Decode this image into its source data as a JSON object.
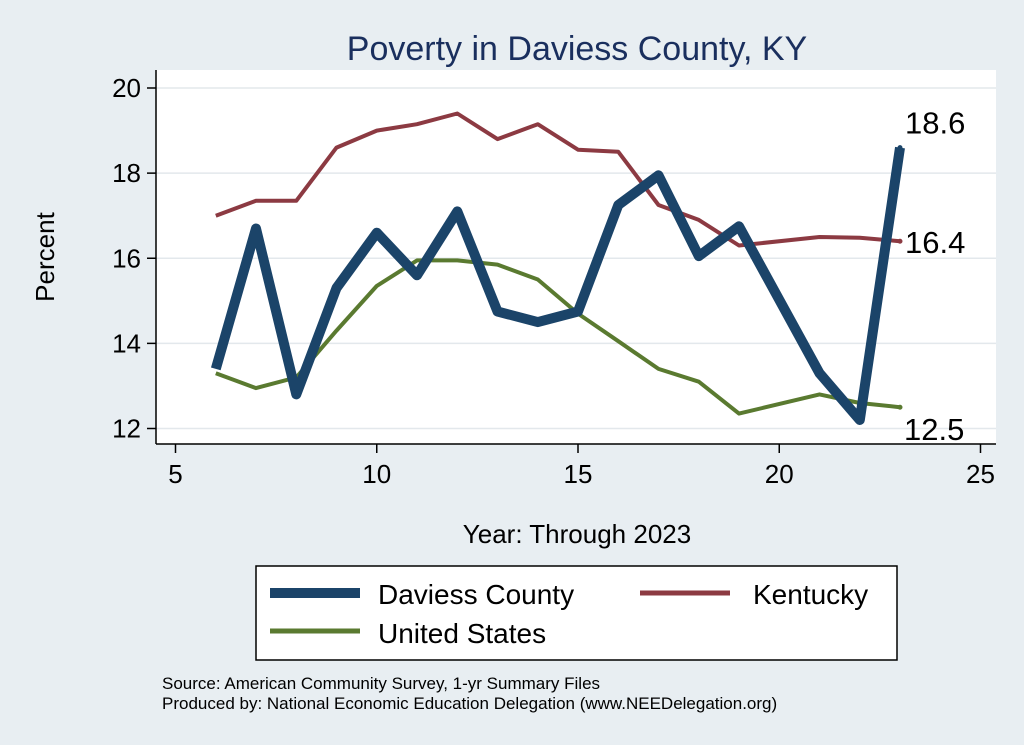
{
  "chart_data": {
    "type": "line",
    "title": "Poverty in Daviess County, KY",
    "xlabel": "Year: Through 2023",
    "ylabel": "Percent",
    "xlim": [
      5,
      25
    ],
    "ylim": [
      12,
      20
    ],
    "xticks": [
      5,
      10,
      15,
      20,
      25
    ],
    "yticks": [
      12,
      14,
      16,
      18,
      20
    ],
    "grid": true,
    "legend_position": "bottom",
    "series": [
      {
        "name": "Daviess County",
        "color": "#1b4469",
        "x": [
          6,
          7,
          8,
          9,
          10,
          11,
          12,
          13,
          14,
          15,
          16,
          17,
          18,
          19,
          21,
          22,
          23
        ],
        "values": [
          13.4,
          16.7,
          12.8,
          15.3,
          16.6,
          15.6,
          17.1,
          14.75,
          14.5,
          14.75,
          17.25,
          17.95,
          16.05,
          16.75,
          13.3,
          12.2,
          18.6
        ],
        "end_label": "18.6"
      },
      {
        "name": "Kentucky",
        "color": "#8c3a42",
        "x": [
          6,
          7,
          8,
          9,
          10,
          11,
          12,
          13,
          14,
          15,
          16,
          17,
          18,
          19,
          21,
          22,
          23
        ],
        "values": [
          17.0,
          17.35,
          17.35,
          18.6,
          19.0,
          19.15,
          19.4,
          18.8,
          19.15,
          18.55,
          18.5,
          17.25,
          16.9,
          16.3,
          16.5,
          16.48,
          16.4
        ],
        "end_label": "16.4"
      },
      {
        "name": "United States",
        "color": "#5a7a30",
        "x": [
          6,
          7,
          8,
          9,
          10,
          11,
          12,
          13,
          14,
          15,
          16,
          17,
          18,
          19,
          21,
          22,
          23
        ],
        "values": [
          13.3,
          12.95,
          13.2,
          14.3,
          15.35,
          15.95,
          15.95,
          15.85,
          15.5,
          14.7,
          14.05,
          13.4,
          13.1,
          12.35,
          12.8,
          12.6,
          12.5
        ],
        "end_label": "12.5"
      }
    ],
    "sources": [
      "Source: American Community Survey, 1-yr Summary Files",
      "Produced by: National Economic Education Delegation (www.NEEDelegation.org)"
    ]
  }
}
